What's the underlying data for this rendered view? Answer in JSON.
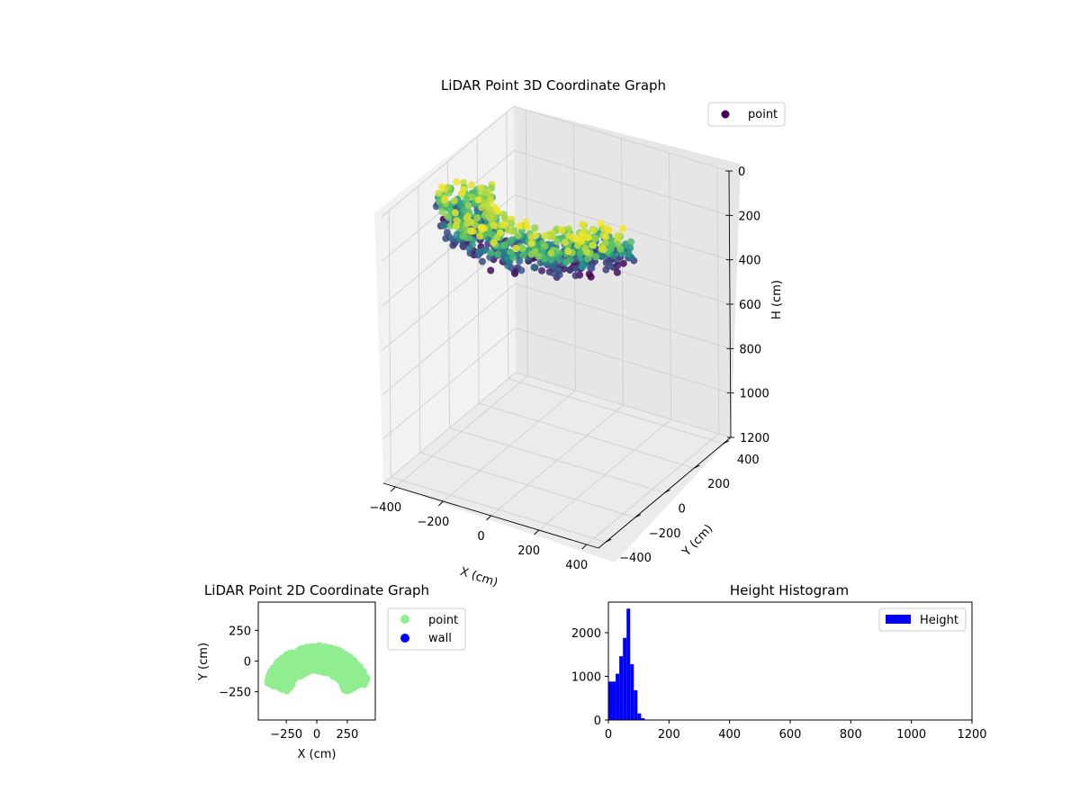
{
  "chart_data": [
    {
      "type": "scatter3d",
      "title": "LiDAR Point 3D Coordinate Graph",
      "xlabel": "X (cm)",
      "ylabel": "Y (cm)",
      "zlabel": "H (cm)",
      "xlim": [
        -450,
        450
      ],
      "ylim": [
        -450,
        450
      ],
      "zlim": [
        0,
        1200
      ],
      "z_inverted": true,
      "x_ticks": [
        "−400",
        "−200",
        "0",
        "200",
        "400"
      ],
      "y_ticks": [
        "−400",
        "−200",
        "0",
        "200",
        "400"
      ],
      "z_ticks": [
        "0",
        "200",
        "400",
        "600",
        "800",
        "1000",
        "1200"
      ],
      "x_tick_values": [
        -400,
        -200,
        0,
        200,
        400
      ],
      "y_tick_values": [
        -400,
        -200,
        0,
        200,
        400
      ],
      "z_tick_values": [
        0,
        200,
        400,
        600,
        800,
        1000,
        1200
      ],
      "colormap": "viridis",
      "series": [
        {
          "name": "point",
          "color": "#440154",
          "shape": "arc",
          "outer_radius": 450,
          "inner_radius": 250,
          "arc_start_deg": 200,
          "arc_end_deg": 340,
          "height_min": 0,
          "height_max": 130
        }
      ],
      "grid": true,
      "legend_position": "top-right"
    },
    {
      "type": "scatter",
      "title": "LiDAR Point 2D Coordinate Graph",
      "xlabel": "X (cm)",
      "ylabel": "Y (cm)",
      "xlim": [
        -480,
        480
      ],
      "ylim": [
        -480,
        480
      ],
      "x_ticks": [
        "−250",
        "0",
        "250"
      ],
      "y_ticks": [
        "250",
        "0",
        "−250"
      ],
      "x_tick_values": [
        -250,
        0,
        250
      ],
      "y_tick_values": [
        250,
        0,
        -250
      ],
      "series": [
        {
          "name": "point",
          "color": "#90ee90",
          "shape": "arc",
          "outer_radius": 450,
          "inner_radius": 250,
          "arc_start_deg": 200,
          "arc_end_deg": 340
        },
        {
          "name": "wall",
          "color": "#0000ff",
          "points": []
        }
      ],
      "grid": false,
      "legend_position": "outside-right"
    },
    {
      "type": "histogram",
      "title": "Height Histogram",
      "xlim": [
        0,
        1200
      ],
      "ylim": [
        0,
        2700
      ],
      "x_ticks": [
        "0",
        "200",
        "400",
        "600",
        "800",
        "1000",
        "1200"
      ],
      "y_ticks": [
        "0",
        "1000",
        "2000"
      ],
      "x_tick_values": [
        0,
        200,
        400,
        600,
        800,
        1000,
        1200
      ],
      "y_tick_values": [
        0,
        1000,
        2000
      ],
      "bin_width": 12,
      "bins": [
        {
          "x": 0,
          "count": 880
        },
        {
          "x": 12,
          "count": 880
        },
        {
          "x": 24,
          "count": 1060
        },
        {
          "x": 36,
          "count": 1460
        },
        {
          "x": 48,
          "count": 1880
        },
        {
          "x": 60,
          "count": 2550
        },
        {
          "x": 72,
          "count": 1280
        },
        {
          "x": 84,
          "count": 680
        },
        {
          "x": 96,
          "count": 150
        },
        {
          "x": 108,
          "count": 40
        }
      ],
      "series": [
        {
          "name": "Height",
          "color": "#0000ff"
        }
      ],
      "grid": false,
      "legend_position": "top-right"
    }
  ]
}
